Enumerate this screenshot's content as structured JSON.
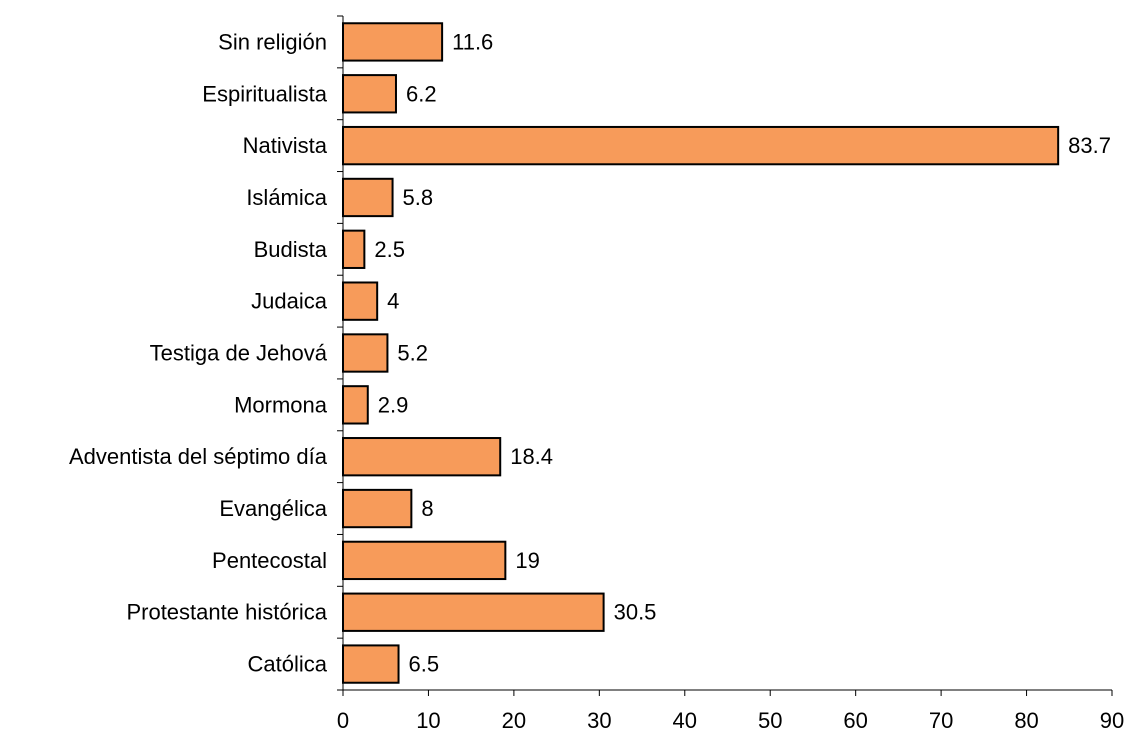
{
  "chart_data": {
    "type": "bar",
    "orientation": "horizontal",
    "title": "",
    "xlabel": "",
    "ylabel": "",
    "categories": [
      "Sin religión",
      "Espiritualista",
      "Nativista",
      "Islámica",
      "Budista",
      "Judaica",
      "Testiga de Jehová",
      "Mormona",
      "Adventista del séptimo día",
      "Evangélica",
      "Pentecostal",
      "Protestante histórica",
      "Católica"
    ],
    "values": [
      11.6,
      6.2,
      83.7,
      5.8,
      2.5,
      4,
      5.2,
      2.9,
      18.4,
      8,
      19,
      30.5,
      6.5
    ],
    "data_labels": [
      "11.6",
      "6.2",
      "83.7",
      "5.8",
      "2.5",
      "4",
      "5.2",
      "2.9",
      "18.4",
      "8",
      "19",
      "30.5",
      "6.5"
    ],
    "xlim": [
      0,
      90
    ],
    "x_ticks": [
      0,
      10,
      20,
      30,
      40,
      50,
      60,
      70,
      80,
      90
    ],
    "x_tick_labels": [
      "0",
      "10",
      "20",
      "30",
      "40",
      "50",
      "60",
      "70",
      "80",
      "90"
    ],
    "grid": false,
    "legend": "none",
    "colors": {
      "bar_fill": "#F79B5A",
      "bar_stroke": "#000000",
      "axis": "#000000",
      "text": "#000000"
    }
  }
}
